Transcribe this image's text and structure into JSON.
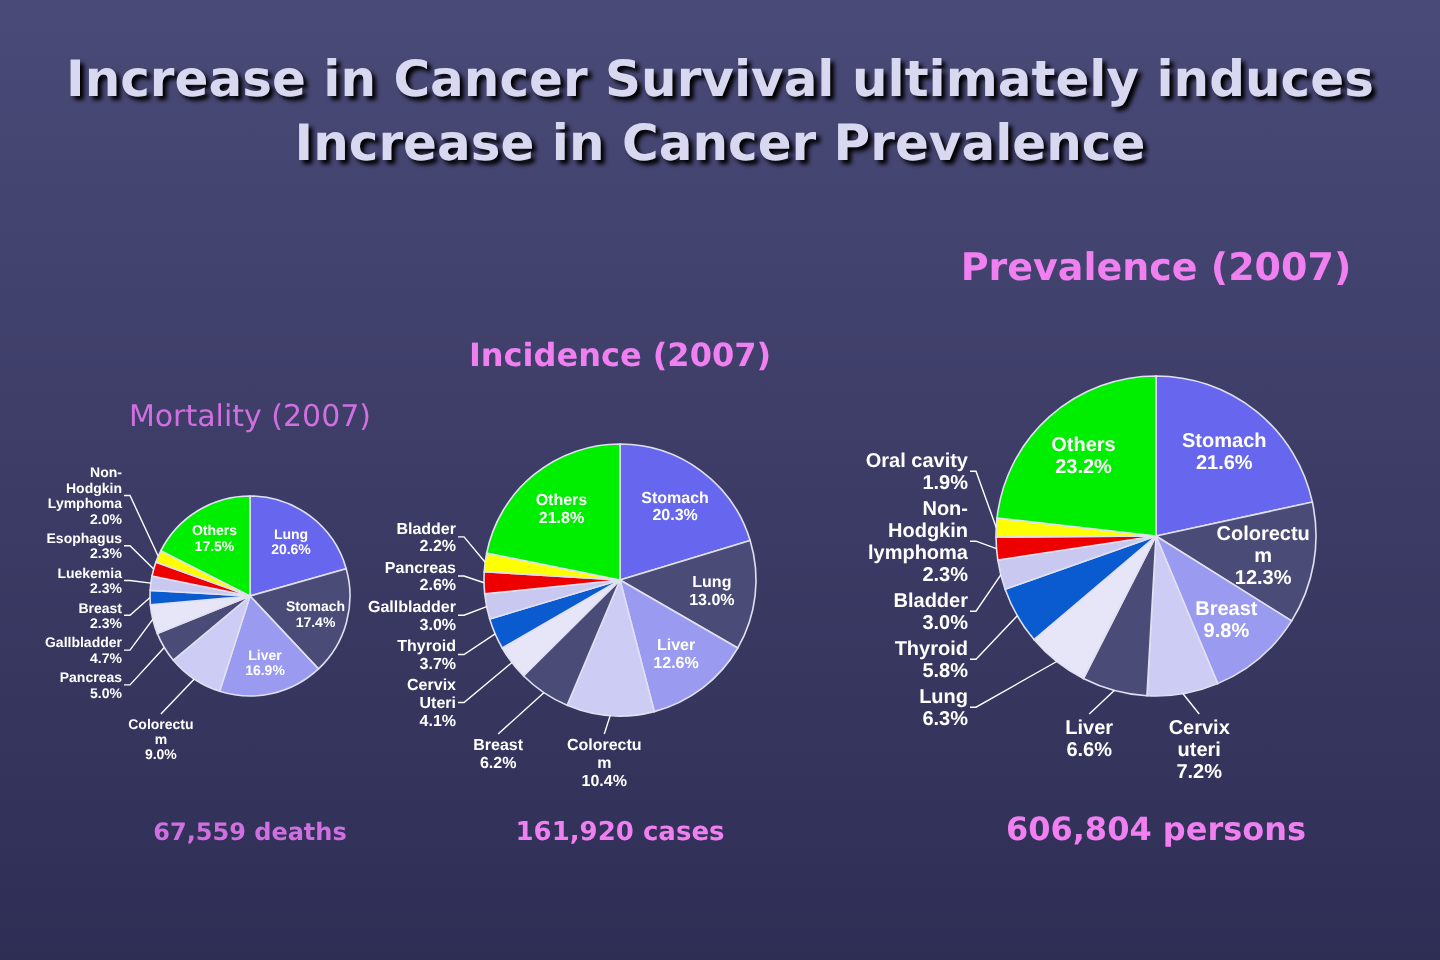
{
  "chart_data": [
    {
      "type": "pie",
      "title": "Mortality (2007)",
      "categories": [
        "Lung",
        "Stomach",
        "Liver",
        "Colorectu\nm",
        "Pancreas",
        "Gallbladder",
        "Breast",
        "Luekemia",
        "Esophagus",
        "Non-\nHodgkin\nLymphoma",
        "Others"
      ],
      "values": [
        20.6,
        17.4,
        16.9,
        9.0,
        5.0,
        4.7,
        2.3,
        2.3,
        2.3,
        2.0,
        17.5
      ],
      "value_labels": [
        "20.6%",
        "17.4%",
        "16.9%",
        "9.0%",
        "5.0%",
        "4.7%",
        "2.3%",
        "2.3%",
        "2.3%",
        "2.0%",
        "17.5%"
      ],
      "colors": [
        "#6666ee",
        "#4b4b78",
        "#9a9af0",
        "#ccccf4",
        "#4b4b78",
        "#e6e6f8",
        "#0b5bd0",
        "#c8c8f0",
        "#ee0000",
        "#ffff00",
        "#00ee00"
      ],
      "legend": false,
      "annotations": [
        "Increase in Cancer Survival ultimately induces Increase in Cancer Prevalence",
        "67,559 deaths"
      ]
    },
    {
      "type": "pie",
      "title": "Incidence (2007)",
      "categories": [
        "Stomach",
        "Lung",
        "Liver",
        "Colorectu\nm",
        "Breast",
        "Cervix\nUteri",
        "Thyroid",
        "Gallbladder",
        "Pancreas",
        "Bladder",
        "Others"
      ],
      "values": [
        20.3,
        13.0,
        12.6,
        10.4,
        6.2,
        4.1,
        3.7,
        3.0,
        2.6,
        2.2,
        21.8
      ],
      "value_labels": [
        "20.3%",
        "13.0%",
        "12.6%",
        "10.4%",
        "6.2%",
        "4.1%",
        "3.7%",
        "3.0%",
        "2.6%",
        "2.2%",
        "21.8%"
      ],
      "colors": [
        "#6666ee",
        "#4b4b78",
        "#9a9af0",
        "#ccccf4",
        "#4b4b78",
        "#e6e6f8",
        "#0b5bd0",
        "#c8c8f0",
        "#ee0000",
        "#ffff00",
        "#00ee00"
      ],
      "legend": false,
      "annotations": [
        "161,920 cases"
      ]
    },
    {
      "type": "pie",
      "title": "Prevalence (2007)",
      "categories": [
        "Stomach",
        "Colorectu\nm",
        "Breast",
        "Cervix\nuteri",
        "Liver",
        "Lung",
        "Thyroid",
        "Bladder",
        "Non-\nHodgkin\nlymphoma",
        "Oral cavity",
        "Others"
      ],
      "values": [
        21.6,
        12.3,
        9.8,
        7.2,
        6.6,
        6.3,
        5.8,
        3.0,
        2.3,
        1.9,
        23.2
      ],
      "value_labels": [
        "21.6%",
        "12.3%",
        "9.8%",
        "7.2%",
        "6.6%",
        "6.3%",
        "5.8%",
        "3.0%",
        "2.3%",
        "1.9%",
        "23.2%"
      ],
      "colors": [
        "#6666ee",
        "#4b4b78",
        "#9a9af0",
        "#ccccf4",
        "#4b4b78",
        "#e6e6f8",
        "#0b5bd0",
        "#c8c8f0",
        "#ee0000",
        "#ffff00",
        "#00ee00"
      ],
      "legend": false,
      "annotations": [
        "606,804 persons"
      ]
    }
  ]
}
